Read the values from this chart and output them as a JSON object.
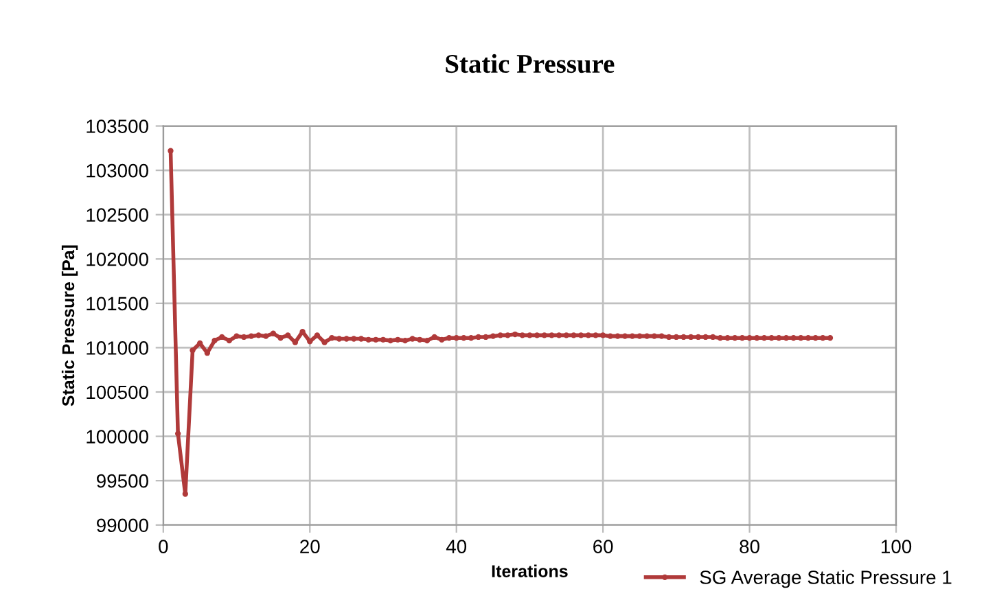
{
  "chart_data": {
    "type": "line",
    "title": "Static Pressure",
    "xlabel": "Iterations",
    "ylabel": "Static Pressure [Pa]",
    "x": [
      1,
      2,
      3,
      4,
      5,
      6,
      7,
      8,
      9,
      10,
      11,
      12,
      13,
      14,
      15,
      16,
      17,
      18,
      19,
      20,
      21,
      22,
      23,
      24,
      25,
      26,
      27,
      28,
      29,
      30,
      31,
      32,
      33,
      34,
      35,
      36,
      37,
      38,
      39,
      40,
      41,
      42,
      43,
      44,
      45,
      46,
      47,
      48,
      49,
      50,
      51,
      52,
      53,
      54,
      55,
      56,
      57,
      58,
      59,
      60,
      61,
      62,
      63,
      64,
      65,
      66,
      67,
      68,
      69,
      70,
      71,
      72,
      73,
      74,
      75,
      76,
      77,
      78,
      79,
      80,
      81,
      82,
      83,
      84,
      85,
      86,
      87,
      88,
      89,
      90,
      91
    ],
    "series": [
      {
        "name": "SG Average Static Pressure 1",
        "color": "#b03a3a",
        "values": [
          103220,
          100030,
          99350,
          100970,
          101050,
          100940,
          101080,
          101120,
          101080,
          101130,
          101120,
          101130,
          101140,
          101130,
          101160,
          101110,
          101140,
          101060,
          101180,
          101070,
          101140,
          101060,
          101110,
          101100,
          101100,
          101100,
          101100,
          101090,
          101090,
          101090,
          101080,
          101090,
          101080,
          101100,
          101090,
          101080,
          101120,
          101090,
          101110,
          101110,
          101110,
          101110,
          101120,
          101120,
          101130,
          101140,
          101140,
          101150,
          101140,
          101140,
          101140,
          101140,
          101140,
          101140,
          101140,
          101140,
          101140,
          101140,
          101140,
          101140,
          101130,
          101130,
          101130,
          101130,
          101130,
          101130,
          101130,
          101130,
          101120,
          101120,
          101120,
          101120,
          101120,
          101120,
          101120,
          101110,
          101110,
          101110,
          101110,
          101110,
          101110,
          101110,
          101110,
          101110,
          101110,
          101110,
          101110,
          101110,
          101110,
          101110,
          101110
        ]
      }
    ],
    "xlim": [
      0,
      100
    ],
    "xticks": [
      0,
      20,
      40,
      60,
      80,
      100
    ],
    "ylim": [
      99000,
      103500
    ],
    "yticks": [
      99000,
      99500,
      100000,
      100500,
      101000,
      101500,
      102000,
      102500,
      103000,
      103500
    ],
    "grid": true,
    "legend": "bottom right",
    "marker": "circle",
    "line_style": "solid"
  }
}
